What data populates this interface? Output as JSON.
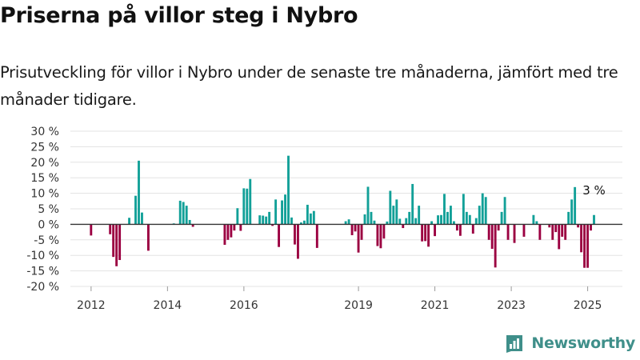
{
  "title": "Priserna på villor steg i Nybro",
  "subtitle": "Prisutveckling för villor i Nybro under de senaste tre månaderna, jämfört med tre månader tidigare.",
  "brand": "Newsworthy",
  "colors": {
    "positive": "#12a098",
    "negative": "#9b0041",
    "zero_line": "#333333",
    "grid": "#e3e3e3",
    "brand": "#3f8f8a"
  },
  "chart_data": {
    "type": "bar",
    "x_unit": "month",
    "y_unit": "%",
    "ylim": [
      -20,
      30
    ],
    "yticks": [
      -20,
      -15,
      -10,
      -5,
      0,
      5,
      10,
      15,
      20,
      25,
      30
    ],
    "ytick_labels": [
      "-20 %",
      "-15 %",
      "-10 %",
      "-5 %",
      "0 %",
      "5 %",
      "10 %",
      "15 %",
      "20 %",
      "25 %",
      "30 %"
    ],
    "xtick_labels": [
      "2012",
      "2014",
      "2016",
      "2019",
      "2021",
      "2023",
      "2025"
    ],
    "xtick_months": [
      "2012-01",
      "2014-01",
      "2016-01",
      "2019-01",
      "2021-01",
      "2023-01",
      "2025-01"
    ],
    "end_label": "3 %",
    "series": [
      {
        "values": [
          [
            "2012-01",
            -3.6
          ],
          [
            "2012-07",
            -3.2
          ],
          [
            "2012-08",
            -10.5
          ],
          [
            "2012-09",
            -13.5
          ],
          [
            "2012-10",
            -11.5
          ],
          [
            "2013-01",
            2.1
          ],
          [
            "2013-03",
            9.2
          ],
          [
            "2013-04",
            20.5
          ],
          [
            "2013-05",
            3.8
          ],
          [
            "2013-07",
            -8.5
          ],
          [
            "2014-03",
            0.3
          ],
          [
            "2014-05",
            7.6
          ],
          [
            "2014-06",
            7.2
          ],
          [
            "2014-07",
            6.0
          ],
          [
            "2014-08",
            1.4
          ],
          [
            "2014-09",
            -0.8
          ],
          [
            "2015-07",
            -6.6
          ],
          [
            "2015-08",
            -5.0
          ],
          [
            "2015-09",
            -4.2
          ],
          [
            "2015-10",
            -2.0
          ],
          [
            "2015-11",
            5.2
          ],
          [
            "2015-12",
            -2.1
          ],
          [
            "2016-01",
            11.6
          ],
          [
            "2016-02",
            11.5
          ],
          [
            "2016-03",
            14.6
          ],
          [
            "2016-06",
            2.9
          ],
          [
            "2016-07",
            2.8
          ],
          [
            "2016-08",
            2.5
          ],
          [
            "2016-09",
            4.0
          ],
          [
            "2016-10",
            -0.5
          ],
          [
            "2016-11",
            8.0
          ],
          [
            "2016-12",
            -7.3
          ],
          [
            "2017-01",
            7.7
          ],
          [
            "2017-02",
            9.6
          ],
          [
            "2017-03",
            22.1
          ],
          [
            "2017-04",
            2.2
          ],
          [
            "2017-05",
            -6.5
          ],
          [
            "2017-06",
            -11.1
          ],
          [
            "2017-07",
            0.6
          ],
          [
            "2017-08",
            1.2
          ],
          [
            "2017-09",
            6.3
          ],
          [
            "2017-10",
            3.5
          ],
          [
            "2017-11",
            4.3
          ],
          [
            "2017-12",
            -7.6
          ],
          [
            "2018-09",
            1.0
          ],
          [
            "2018-10",
            1.6
          ],
          [
            "2018-11",
            -3.5
          ],
          [
            "2018-12",
            -2.3
          ],
          [
            "2019-01",
            -9.1
          ],
          [
            "2019-02",
            -5.0
          ],
          [
            "2019-03",
            3.2
          ],
          [
            "2019-04",
            12.1
          ],
          [
            "2019-05",
            4.0
          ],
          [
            "2019-06",
            1.2
          ],
          [
            "2019-07",
            -7.0
          ],
          [
            "2019-08",
            -7.7
          ],
          [
            "2019-09",
            -4.6
          ],
          [
            "2019-10",
            0.9
          ],
          [
            "2019-11",
            10.8
          ],
          [
            "2019-12",
            6.0
          ],
          [
            "2020-01",
            8.0
          ],
          [
            "2020-02",
            1.8
          ],
          [
            "2020-03",
            -1.2
          ],
          [
            "2020-04",
            2.0
          ],
          [
            "2020-05",
            4.0
          ],
          [
            "2020-06",
            13.0
          ],
          [
            "2020-07",
            2.0
          ],
          [
            "2020-08",
            6.0
          ],
          [
            "2020-09",
            -5.5
          ],
          [
            "2020-10",
            -5.4
          ],
          [
            "2020-11",
            -7.2
          ],
          [
            "2020-12",
            1.0
          ],
          [
            "2021-01",
            -3.8
          ],
          [
            "2021-02",
            2.9
          ],
          [
            "2021-03",
            3.0
          ],
          [
            "2021-04",
            9.8
          ],
          [
            "2021-05",
            4.0
          ],
          [
            "2021-06",
            6.0
          ],
          [
            "2021-07",
            1.0
          ],
          [
            "2021-08",
            -2.0
          ],
          [
            "2021-09",
            -3.7
          ],
          [
            "2021-10",
            9.8
          ],
          [
            "2021-11",
            4.0
          ],
          [
            "2021-12",
            3.0
          ],
          [
            "2022-01",
            -3.0
          ],
          [
            "2022-02",
            2.0
          ],
          [
            "2022-03",
            6.0
          ],
          [
            "2022-04",
            10.0
          ],
          [
            "2022-05",
            8.8
          ],
          [
            "2022-06",
            -5.0
          ],
          [
            "2022-07",
            -7.9
          ],
          [
            "2022-08",
            -13.9
          ],
          [
            "2022-09",
            -2.0
          ],
          [
            "2022-10",
            4.0
          ],
          [
            "2022-11",
            8.8
          ],
          [
            "2022-12",
            -5.0
          ],
          [
            "2023-02",
            -6.0
          ],
          [
            "2023-05",
            -4.0
          ],
          [
            "2023-08",
            3.0
          ],
          [
            "2023-09",
            1.0
          ],
          [
            "2023-10",
            -5.0
          ],
          [
            "2024-01",
            -1.0
          ],
          [
            "2024-02",
            -5.0
          ],
          [
            "2024-03",
            -2.5
          ],
          [
            "2024-04",
            -8.0
          ],
          [
            "2024-05",
            -4.0
          ],
          [
            "2024-06",
            -5.0
          ],
          [
            "2024-07",
            4.0
          ],
          [
            "2024-08",
            8.0
          ],
          [
            "2024-09",
            12.0
          ],
          [
            "2024-10",
            -1.0
          ],
          [
            "2024-11",
            -9.0
          ],
          [
            "2024-12",
            -14.0
          ],
          [
            "2025-01",
            -14.0
          ],
          [
            "2025-02",
            -2.0
          ],
          [
            "2025-03",
            3.0
          ]
        ]
      }
    ]
  }
}
